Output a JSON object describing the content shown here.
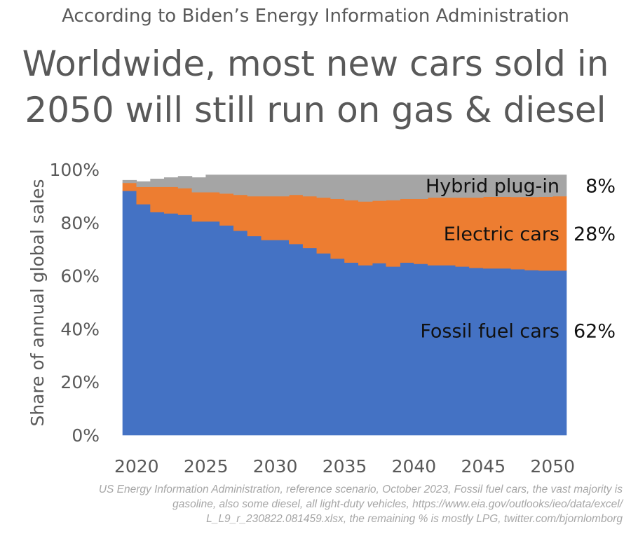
{
  "header": {
    "supertitle": "According to Biden’s Energy Information Administration",
    "title_line1": "Worldwide, most new cars sold in",
    "title_line2": "2050 will still run on gas & diesel"
  },
  "chart_data": {
    "type": "area",
    "title": "Worldwide, most new cars sold in 2050 will still run on gas & diesel",
    "ylabel": "Share of annual global sales",
    "xlabel": "",
    "x": [
      2019,
      2020,
      2021,
      2022,
      2023,
      2024,
      2025,
      2026,
      2027,
      2028,
      2029,
      2030,
      2031,
      2032,
      2033,
      2034,
      2035,
      2036,
      2037,
      2038,
      2039,
      2040,
      2041,
      2042,
      2043,
      2044,
      2045,
      2046,
      2047,
      2048,
      2049,
      2050
    ],
    "xlim": [
      2019,
      2051
    ],
    "ylim": [
      0,
      100
    ],
    "x_ticks": [
      "2020",
      "2025",
      "2030",
      "2035",
      "2040",
      "2045",
      "2050"
    ],
    "x_tick_values": [
      2020,
      2025,
      2030,
      2035,
      2040,
      2045,
      2050
    ],
    "y_ticks": [
      "0%",
      "20%",
      "40%",
      "60%",
      "80%",
      "100%"
    ],
    "y_tick_values": [
      0,
      20,
      40,
      60,
      80,
      100
    ],
    "grid": false,
    "stacked": true,
    "series": [
      {
        "name": "Fossil fuel cars",
        "color": "#4472C4",
        "values": [
          92,
          87,
          84,
          83.5,
          83,
          80.5,
          80.5,
          79,
          77,
          75,
          73.5,
          73.5,
          72,
          70.5,
          68.5,
          66.5,
          65,
          64,
          64.8,
          63.5,
          65,
          64.5,
          64,
          64,
          63.5,
          63,
          62.8,
          62.8,
          62.5,
          62.2,
          62,
          62
        ]
      },
      {
        "name": "Electric cars",
        "color": "#ED7D31",
        "values": [
          3,
          6.5,
          9.5,
          10,
          10,
          11,
          11,
          12,
          13.5,
          15,
          16.5,
          16.5,
          18.5,
          19.5,
          21,
          22.5,
          23.5,
          24,
          23.5,
          25,
          24,
          24.5,
          25.5,
          25.5,
          26,
          26.5,
          27,
          27,
          27.2,
          27.5,
          27.8,
          28
        ]
      },
      {
        "name": "Hybrid plug-in",
        "color": "#A5A5A5",
        "values": [
          1,
          2,
          3,
          3.5,
          4.5,
          5.5,
          6.5,
          7,
          7.5,
          8,
          8,
          8,
          7.5,
          8,
          8.5,
          9,
          9.5,
          10,
          9.7,
          9.5,
          9,
          9,
          8.5,
          8.5,
          8.5,
          8.5,
          8.2,
          8.2,
          8.3,
          8.3,
          8.2,
          8
        ]
      }
    ],
    "labels": [
      {
        "series": "Hybrid plug-in",
        "text": "Hybrid plug-in",
        "value": "8%"
      },
      {
        "series": "Electric cars",
        "text": "Electric cars",
        "value": "28%"
      },
      {
        "series": "Fossil fuel cars",
        "text": "Fossil fuel cars",
        "value": "62%"
      }
    ]
  },
  "footer": {
    "source_line1": "US Energy Information Administration, reference scenario, October 2023, Fossil fuel cars, the vast majority is",
    "source_line2": "gasoline, also some diesel, all light-duty vehicles, https://www.eia.gov/outlooks/ieo/data/excel/",
    "source_line3": "L_L9_r_230822.081459.xlsx, the remaining % is mostly LPG, twitter.com/bjornlomborg"
  }
}
